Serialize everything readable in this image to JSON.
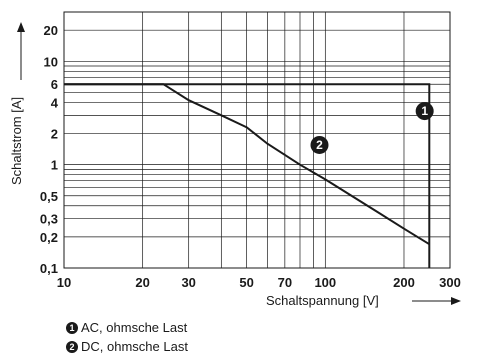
{
  "chart_data": {
    "type": "line",
    "x_scale": "log",
    "y_scale": "log",
    "xlim": [
      10,
      300
    ],
    "ylim": [
      0.1,
      30
    ],
    "x_ticks": [
      10,
      20,
      30,
      50,
      70,
      100,
      200,
      300
    ],
    "y_ticks": [
      0.1,
      0.2,
      0.3,
      0.5,
      1,
      2,
      4,
      6,
      10,
      20
    ],
    "x_tick_labels": [
      "10",
      "20",
      "30",
      "50",
      "70",
      "100",
      "200",
      "300"
    ],
    "y_tick_labels": [
      "0,1",
      "0,2",
      "0,3",
      "0,5",
      "1",
      "2",
      "4",
      "6",
      "10",
      "20"
    ],
    "xlabel": "Schaltspannung [V]",
    "ylabel": "Schaltstrom [A]",
    "grid": true,
    "series": [
      {
        "marker": "1",
        "x": [
          10,
          250,
          250
        ],
        "y": [
          6,
          6,
          0.1
        ]
      },
      {
        "marker": "2",
        "x": [
          10,
          24,
          30,
          40,
          50,
          60,
          80,
          100,
          150,
          200,
          250
        ],
        "y": [
          6,
          6,
          4.2,
          3,
          2.3,
          1.6,
          1,
          0.72,
          0.38,
          0.24,
          0.17
        ]
      }
    ],
    "legend": [
      {
        "marker": "1",
        "label": "AC, ohmsche Last"
      },
      {
        "marker": "2",
        "label": "DC, ohmsche Last"
      }
    ]
  }
}
